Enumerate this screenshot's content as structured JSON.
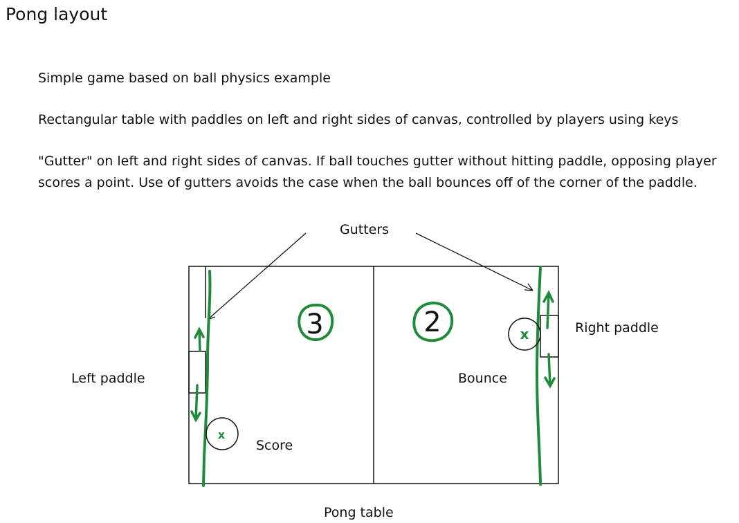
{
  "title": "Pong layout",
  "paragraphs": [
    "Simple game based on ball physics example",
    "Rectangular table with paddles on left and right sides of canvas, controlled by players using keys",
    "\"Gutter\" on left and right sides of canvas. If ball touches gutter without hitting paddle, opposing player scores a point.  Use of gutters avoids the case when the ball bounces off of the corner of the paddle."
  ],
  "labels": {
    "gutters": "Gutters",
    "left_paddle": "Left paddle",
    "right_paddle": "Right paddle",
    "bounce": "Bounce",
    "score": "Score",
    "pong_table": "Pong table"
  },
  "scores": {
    "left": "3",
    "right": "2"
  },
  "ball_marks": {
    "left": "x",
    "right": "x"
  },
  "colors": {
    "ink": "#111111",
    "annotation_green": "#1f8a3a"
  }
}
